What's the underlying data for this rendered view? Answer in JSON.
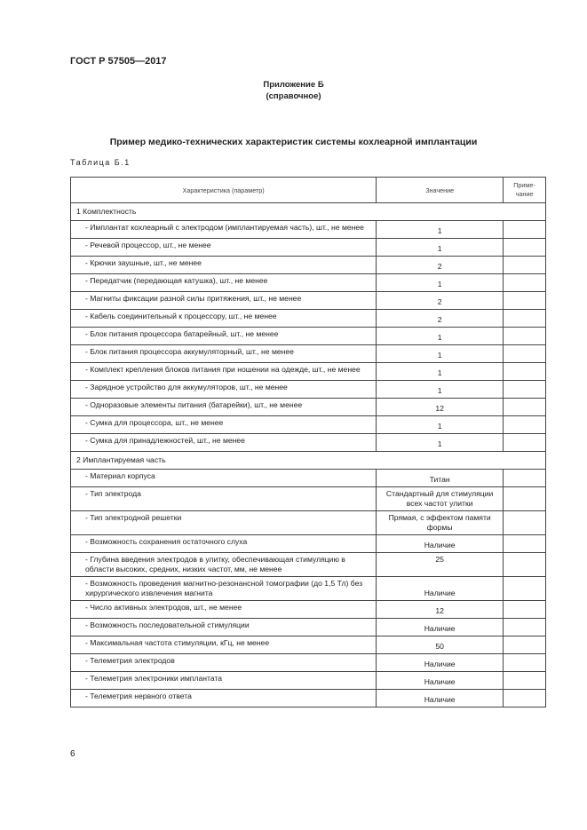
{
  "header": {
    "doc_id": "ГОСТ Р 57505—2017"
  },
  "appendix": {
    "title": "Приложение Б",
    "subtitle": "(справочное)"
  },
  "title": "Пример медико-технических характеристик системы кохлеарной имплантации",
  "table_label": "Таблица Б.1",
  "table": {
    "headers": [
      "Характеристика (параметр)",
      "Значение",
      "Приме-\nчание"
    ],
    "rows": [
      {
        "section": "1 Комплектность"
      },
      {
        "param": "- Имплантат кохлеарный с электродом (имплантируемая часть), шт., не менее",
        "value": "1"
      },
      {
        "param": "- Речевой процессор, шт., не менее",
        "value": "1"
      },
      {
        "param": "- Крючки заушные, шт., не менее",
        "value": "2"
      },
      {
        "param": "- Передатчик (передающая катушка), шт., не менее",
        "value": "1"
      },
      {
        "param": "- Магниты фиксации разной силы притяжения, шт., не менее",
        "value": "2"
      },
      {
        "param": "- Кабель соединительный к процессору, шт., не менее",
        "value": "2"
      },
      {
        "param": "- Блок питания процессора батарейный, шт., не менее",
        "value": "1"
      },
      {
        "param": "- Блок питания процессора аккумуляторный, шт., не менее",
        "value": "1"
      },
      {
        "param": "- Комплект крепления блоков питания при ношении на одежде, шт., не менее",
        "value": "1"
      },
      {
        "param": "- Зарядное устройство для аккумуляторов, шт., не менее",
        "value": "1"
      },
      {
        "param": "- Одноразовые элементы питания (батарейки), шт., не менее",
        "value": "12"
      },
      {
        "param": "- Сумка для процессора, шт., не менее",
        "value": "1"
      },
      {
        "param": "- Сумка для принадлежностей, шт., не менее",
        "value": "1"
      },
      {
        "section": "2 Имплантируемая часть"
      },
      {
        "param": "- Материал корпуса",
        "value": "Титан"
      },
      {
        "param": "- Тип электрода",
        "value": "Стандартный для стимуляции всех частот улитки"
      },
      {
        "param": "- Тип электродной решетки",
        "value": "Прямая, с эффектом памяти формы"
      },
      {
        "param": "- Возможность сохранения остаточного слуха",
        "value": "Наличие"
      },
      {
        "param": "- Глубина введения электродов в улитку, обеспечивающая стимуляцию в области высоких, средних, низких частот, мм, не менее",
        "value": "25"
      },
      {
        "param": "- Возможность проведения магнитно-резонансной томографии (до 1,5 Тл) без хирургического извлечения магнита",
        "value": "Наличие"
      },
      {
        "param": "- Число активных электродов, шт., не менее",
        "value": "12"
      },
      {
        "param": "- Возможность последовательной стимуляции",
        "value": "Наличие"
      },
      {
        "param": "- Максимальная частота стимуляции, кГц, не менее",
        "value": "50"
      },
      {
        "param": "- Телеметрия электродов",
        "value": "Наличие"
      },
      {
        "param": "- Телеметрия электроники имплантата",
        "value": "Наличие"
      },
      {
        "param": "- Телеметрия нервного ответа",
        "value": "Наличие"
      }
    ]
  },
  "footer": {
    "page_number": "6"
  }
}
